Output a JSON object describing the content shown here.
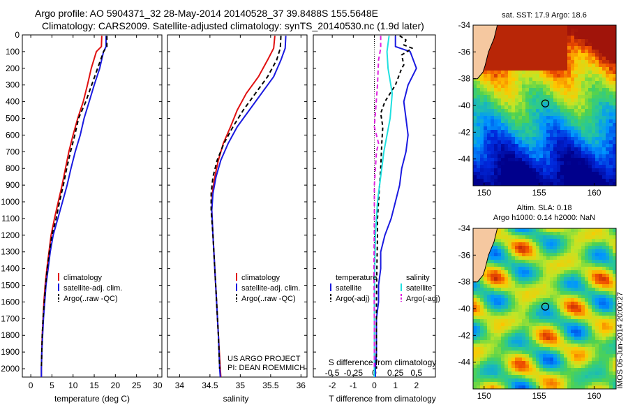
{
  "header": {
    "line1": "Argo profile: AO 5904371_32 28-May-2014 20140528_37 39.8488S 155.5648E",
    "line2": "Climatology: CARS2009. Satellite-adjusted climatology: synTS_20140530.nc (1.9d later)"
  },
  "colors": {
    "climatology": "#e01010",
    "satellite": "#1a1ae0",
    "argo": "#000000",
    "sal_satellite": "#20e0e0",
    "sal_argo": "#e020e0"
  },
  "chart_data": [
    {
      "type": "line",
      "name": "temperature-profile",
      "xlabel": "temperature (deg C)",
      "ylabel": "",
      "xlim": [
        -2,
        31
      ],
      "ylim": [
        2050,
        0
      ],
      "xticks": [
        0,
        5,
        10,
        15,
        20,
        25,
        30
      ],
      "yticks": [
        0,
        100,
        200,
        300,
        400,
        500,
        600,
        700,
        800,
        900,
        1000,
        1100,
        1200,
        1300,
        1400,
        1500,
        1600,
        1700,
        1800,
        1900,
        2000
      ],
      "series": [
        {
          "name": "climatology",
          "color": "#e01010",
          "dash": "",
          "points": [
            [
              16.8,
              5
            ],
            [
              16.7,
              70
            ],
            [
              15.5,
              100
            ],
            [
              14.3,
              200
            ],
            [
              13.4,
              300
            ],
            [
              12.4,
              400
            ],
            [
              11.1,
              500
            ],
            [
              10.0,
              600
            ],
            [
              9.0,
              700
            ],
            [
              8.2,
              800
            ],
            [
              7.4,
              900
            ],
            [
              6.5,
              1000
            ],
            [
              5.6,
              1100
            ],
            [
              4.8,
              1200
            ],
            [
              4.3,
              1300
            ],
            [
              3.8,
              1400
            ],
            [
              3.4,
              1500
            ],
            [
              3.1,
              1600
            ],
            [
              2.9,
              1700
            ],
            [
              2.7,
              1800
            ],
            [
              2.6,
              1900
            ],
            [
              2.5,
              2000
            ],
            [
              2.5,
              2050
            ]
          ]
        },
        {
          "name": "satellite-adj. clim.",
          "color": "#1a1ae0",
          "dash": "",
          "points": [
            [
              17.8,
              5
            ],
            [
              17.8,
              70
            ],
            [
              17.2,
              100
            ],
            [
              16.3,
              200
            ],
            [
              15.0,
              300
            ],
            [
              13.8,
              400
            ],
            [
              12.6,
              500
            ],
            [
              11.7,
              600
            ],
            [
              10.5,
              700
            ],
            [
              9.5,
              800
            ],
            [
              8.6,
              900
            ],
            [
              7.5,
              1000
            ],
            [
              6.4,
              1100
            ],
            [
              5.3,
              1200
            ],
            [
              4.6,
              1300
            ],
            [
              4.1,
              1400
            ],
            [
              3.6,
              1500
            ],
            [
              3.3,
              1600
            ],
            [
              3.0,
              1700
            ],
            [
              2.8,
              1800
            ],
            [
              2.6,
              1900
            ],
            [
              2.5,
              2000
            ],
            [
              2.5,
              2050
            ]
          ]
        },
        {
          "name": "Argo(..raw -QC)",
          "color": "#000000",
          "dash": "6,4",
          "points": [
            [
              18.0,
              5
            ],
            [
              18.0,
              70
            ],
            [
              17.2,
              100
            ],
            [
              15.8,
              200
            ],
            [
              14.4,
              300
            ],
            [
              13.0,
              400
            ],
            [
              11.3,
              500
            ],
            [
              10.4,
              600
            ],
            [
              9.4,
              700
            ],
            [
              8.5,
              800
            ],
            [
              7.7,
              900
            ],
            [
              6.8,
              1000
            ],
            [
              6.0,
              1100
            ],
            [
              5.0,
              1200
            ],
            [
              4.4,
              1300
            ],
            [
              3.9,
              1400
            ],
            [
              3.5,
              1500
            ],
            [
              3.2,
              1600
            ],
            [
              2.9,
              1700
            ],
            [
              2.7,
              1800
            ],
            [
              2.6,
              1900
            ],
            [
              2.5,
              2000
            ]
          ]
        }
      ],
      "legend": [
        "climatology",
        "satellite-adj. clim.",
        "Argo(..raw -QC)"
      ],
      "legend_position": "lower-right"
    },
    {
      "type": "line",
      "name": "salinity-profile",
      "xlabel": "salinity",
      "ylabel": "",
      "xlim": [
        33.8,
        36.1
      ],
      "ylim": [
        2050,
        0
      ],
      "xticks": [
        34,
        34.5,
        35,
        35.5,
        36
      ],
      "series": [
        {
          "name": "climatology",
          "color": "#e01010",
          "dash": "",
          "points": [
            [
              35.57,
              5
            ],
            [
              35.55,
              80
            ],
            [
              35.45,
              150
            ],
            [
              35.3,
              250
            ],
            [
              35.1,
              350
            ],
            [
              34.95,
              450
            ],
            [
              34.84,
              550
            ],
            [
              34.72,
              650
            ],
            [
              34.64,
              750
            ],
            [
              34.58,
              850
            ],
            [
              34.54,
              950
            ],
            [
              34.53,
              1050
            ],
            [
              34.55,
              1200
            ],
            [
              34.58,
              1400
            ],
            [
              34.61,
              1600
            ],
            [
              34.64,
              1800
            ],
            [
              34.67,
              2000
            ],
            [
              34.68,
              2050
            ]
          ]
        },
        {
          "name": "satellite-adj. clim.",
          "color": "#1a1ae0",
          "dash": "",
          "points": [
            [
              35.75,
              5
            ],
            [
              35.74,
              80
            ],
            [
              35.67,
              150
            ],
            [
              35.55,
              250
            ],
            [
              35.35,
              350
            ],
            [
              35.15,
              450
            ],
            [
              34.95,
              550
            ],
            [
              34.8,
              650
            ],
            [
              34.68,
              750
            ],
            [
              34.6,
              850
            ],
            [
              34.55,
              950
            ],
            [
              34.53,
              1050
            ],
            [
              34.55,
              1200
            ],
            [
              34.58,
              1400
            ],
            [
              34.61,
              1600
            ],
            [
              34.64,
              1800
            ],
            [
              34.66,
              2000
            ],
            [
              34.67,
              2050
            ]
          ]
        },
        {
          "name": "Argo(..raw -QC)",
          "color": "#000000",
          "dash": "6,4",
          "points": [
            [
              35.67,
              5
            ],
            [
              35.66,
              80
            ],
            [
              35.6,
              150
            ],
            [
              35.45,
              250
            ],
            [
              35.25,
              350
            ],
            [
              35.05,
              450
            ],
            [
              34.88,
              550
            ],
            [
              34.73,
              650
            ],
            [
              34.62,
              750
            ],
            [
              34.55,
              850
            ],
            [
              34.52,
              950
            ],
            [
              34.52,
              1050
            ],
            [
              34.55,
              1200
            ],
            [
              34.58,
              1400
            ],
            [
              34.61,
              1600
            ],
            [
              34.64,
              1800
            ],
            [
              34.66,
              2000
            ]
          ]
        }
      ],
      "legend": [
        "climatology",
        "satellite-adj. clim.",
        "Argo(..raw -QC)"
      ],
      "legend_position": "lower-right",
      "annotation": [
        "US ARGO PROJECT",
        "PI: DEAN ROEMMICH"
      ]
    },
    {
      "type": "line",
      "name": "difference-profile",
      "xlabel": "T difference from climatology",
      "top_xlabel": "S difference from climatology",
      "xlim": [
        -2.9,
        2.9
      ],
      "ylim": [
        2050,
        0
      ],
      "xticks": [
        -2,
        -1,
        0,
        1,
        2
      ],
      "top_xticks": [
        -0.5,
        -0.25,
        0,
        0.25,
        0.5
      ],
      "top_xtick_labels": [
        "-0.5",
        "-0.25",
        "0",
        "0.25",
        "0.5"
      ],
      "series": [
        {
          "name": "temperature satellite",
          "color": "#1a1ae0",
          "dash": "",
          "points": [
            [
              1.0,
              5
            ],
            [
              1.0,
              70
            ],
            [
              1.7,
              100
            ],
            [
              2.0,
              200
            ],
            [
              1.6,
              300
            ],
            [
              1.4,
              400
            ],
            [
              1.5,
              500
            ],
            [
              1.6,
              600
            ],
            [
              1.5,
              700
            ],
            [
              1.3,
              800
            ],
            [
              1.2,
              900
            ],
            [
              1.0,
              1000
            ],
            [
              0.8,
              1100
            ],
            [
              0.5,
              1200
            ],
            [
              0.3,
              1300
            ],
            [
              0.3,
              1400
            ],
            [
              0.2,
              1500
            ],
            [
              0.2,
              1600
            ],
            [
              0.1,
              1700
            ],
            [
              0.1,
              1800
            ],
            [
              0.1,
              1900
            ],
            [
              0.05,
              2000
            ],
            [
              0.05,
              2050
            ]
          ]
        },
        {
          "name": "temperature Argo(-adj)",
          "color": "#000000",
          "dash": "5,4",
          "points": [
            [
              1.2,
              5
            ],
            [
              1.5,
              30
            ],
            [
              1.4,
              60
            ],
            [
              1.8,
              80
            ],
            [
              1.3,
              120
            ],
            [
              1.4,
              180
            ],
            [
              1.3,
              200
            ],
            [
              1.0,
              300
            ],
            [
              0.5,
              400
            ],
            [
              0.3,
              470
            ],
            [
              0.4,
              550
            ],
            [
              0.35,
              650
            ],
            [
              0.3,
              800
            ],
            [
              0.25,
              900
            ],
            [
              0.2,
              1000
            ],
            [
              0.15,
              1100
            ],
            [
              0.15,
              1200
            ],
            [
              0.12,
              1400
            ],
            [
              0.1,
              1600
            ],
            [
              0.1,
              1800
            ],
            [
              0.1,
              2000
            ]
          ]
        },
        {
          "name": "salinity satellite",
          "color": "#20e0e0",
          "dash": "",
          "points": [
            [
              0.7,
              5
            ],
            [
              0.6,
              100
            ],
            [
              0.65,
              200
            ],
            [
              0.85,
              350
            ],
            [
              0.75,
              500
            ],
            [
              0.6,
              600
            ],
            [
              0.45,
              700
            ],
            [
              0.35,
              800
            ],
            [
              0.25,
              900
            ],
            [
              0.15,
              1000
            ],
            [
              0.1,
              1100
            ],
            [
              0.05,
              1200
            ],
            [
              0.02,
              1400
            ],
            [
              0.0,
              1600
            ],
            [
              0.0,
              1800
            ],
            [
              0.0,
              2000
            ],
            [
              0.0,
              2050
            ]
          ]
        },
        {
          "name": "salinity Argo(-adj)",
          "color": "#e020e0",
          "dash": "6,4",
          "points": [
            [
              0.3,
              5
            ],
            [
              0.3,
              80
            ],
            [
              0.2,
              150
            ],
            [
              0.15,
              300
            ],
            [
              0.0,
              550
            ],
            [
              0.2,
              650
            ],
            [
              0.1,
              700
            ],
            [
              0.05,
              800
            ],
            [
              0.0,
              900
            ],
            [
              0.0,
              1100
            ],
            [
              -0.02,
              1400
            ],
            [
              0.0,
              1700
            ],
            [
              0.0,
              2000
            ]
          ]
        }
      ],
      "legend_temperature": {
        "title": "temperature",
        "items": [
          "satellite",
          "Argo(-adj)"
        ]
      },
      "legend_salinity": {
        "title": "salinity",
        "items": [
          "satellite",
          "Argo(-adj)"
        ]
      }
    },
    {
      "type": "heatmap",
      "name": "sst-map",
      "title": "sat. SST: 17.9 Argo: 18.6",
      "xlim": [
        149,
        162
      ],
      "ylim": [
        -46,
        -34
      ],
      "xticks": [
        150,
        155,
        160
      ],
      "yticks": [
        -34,
        -36,
        -38,
        -40,
        -42,
        -44
      ],
      "marker": {
        "lon": 155.56,
        "lat": -39.85
      }
    },
    {
      "type": "heatmap",
      "name": "sla-map",
      "title_line1": "Altim. SLA: 0.18",
      "title_line2": "Argo h1000: 0.14 h2000: NaN",
      "xlim": [
        149,
        162
      ],
      "ylim": [
        -46,
        -34
      ],
      "xticks": [
        150,
        155,
        160
      ],
      "yticks": [
        -34,
        -36,
        -38,
        -40,
        -42,
        -44
      ],
      "marker": {
        "lon": 155.56,
        "lat": -39.85
      }
    }
  ],
  "footer_credit": "IMOS 06-Jun-2014 20:00:27"
}
